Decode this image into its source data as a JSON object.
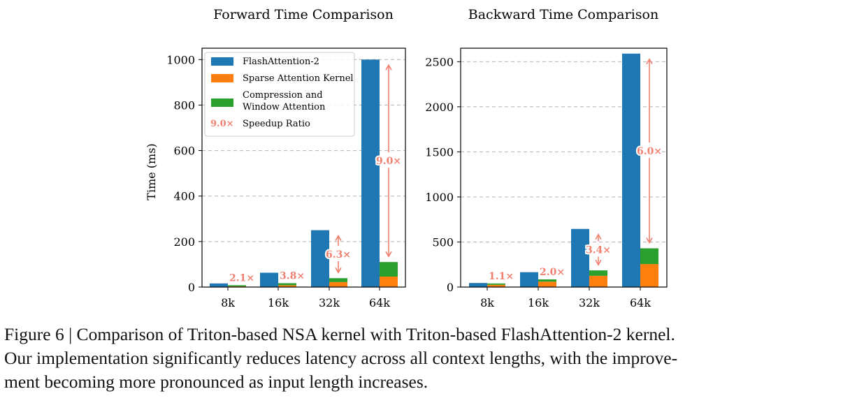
{
  "figure": {
    "ylabel": "Time (ms)",
    "legend": [
      {
        "label": "FlashAttention-2",
        "color": "#1f77b4"
      },
      {
        "label": "Sparse Attention Kernel",
        "color": "#ff7f0e"
      },
      {
        "label": "Compression and Window Attention",
        "lines": [
          "Compression and",
          "Window Attention"
        ],
        "color": "#2ca02c"
      },
      {
        "label": "Speedup Ratio",
        "marker": "9.0×",
        "color": "#f08070"
      }
    ],
    "caption": {
      "line1": "Figure 6 | Comparison of Triton-based NSA kernel with Triton-based FlashAttention-2 kernel.",
      "line2": "Our implementation significantly reduces latency across all context lengths, with the improve-",
      "line3": "ment becoming more pronounced as input length increases."
    }
  },
  "chart_data": [
    {
      "type": "bar",
      "title": "Forward Time Comparison",
      "xlabel": "",
      "ylabel": "Time (ms)",
      "categories": [
        "8k",
        "16k",
        "32k",
        "64k"
      ],
      "ylim": [
        0,
        1050
      ],
      "yticks": [
        0,
        200,
        400,
        600,
        800,
        1000
      ],
      "grid": true,
      "legend_position": "top-left",
      "series": [
        {
          "name": "FlashAttention-2",
          "color": "#1f77b4",
          "values": [
            16,
            63,
            250,
            1000
          ]
        },
        {
          "name": "Sparse Attention Kernel",
          "color": "#ff7f0e",
          "values": [
            3,
            8,
            22,
            46
          ]
        },
        {
          "name": "Compression and Window Attention",
          "color": "#2ca02c",
          "values": [
            5,
            9,
            17,
            64
          ]
        }
      ],
      "speedup_labels": [
        "2.1×",
        "3.8×",
        "6.3×",
        "9.0×"
      ]
    },
    {
      "type": "bar",
      "title": "Backward Time Comparison",
      "xlabel": "",
      "ylabel": "",
      "categories": [
        "8k",
        "16k",
        "32k",
        "64k"
      ],
      "ylim": [
        0,
        2650
      ],
      "yticks": [
        0,
        500,
        1000,
        1500,
        2000,
        2500
      ],
      "grid": true,
      "series": [
        {
          "name": "FlashAttention-2",
          "color": "#1f77b4",
          "values": [
            45,
            165,
            645,
            2590
          ]
        },
        {
          "name": "Sparse Attention Kernel",
          "color": "#ff7f0e",
          "values": [
            25,
            60,
            125,
            255
          ]
        },
        {
          "name": "Compression and Window Attention",
          "color": "#2ca02c",
          "values": [
            15,
            25,
            60,
            175
          ]
        }
      ],
      "speedup_labels": [
        "1.1×",
        "2.0×",
        "3.4×",
        "6.0×"
      ]
    }
  ]
}
